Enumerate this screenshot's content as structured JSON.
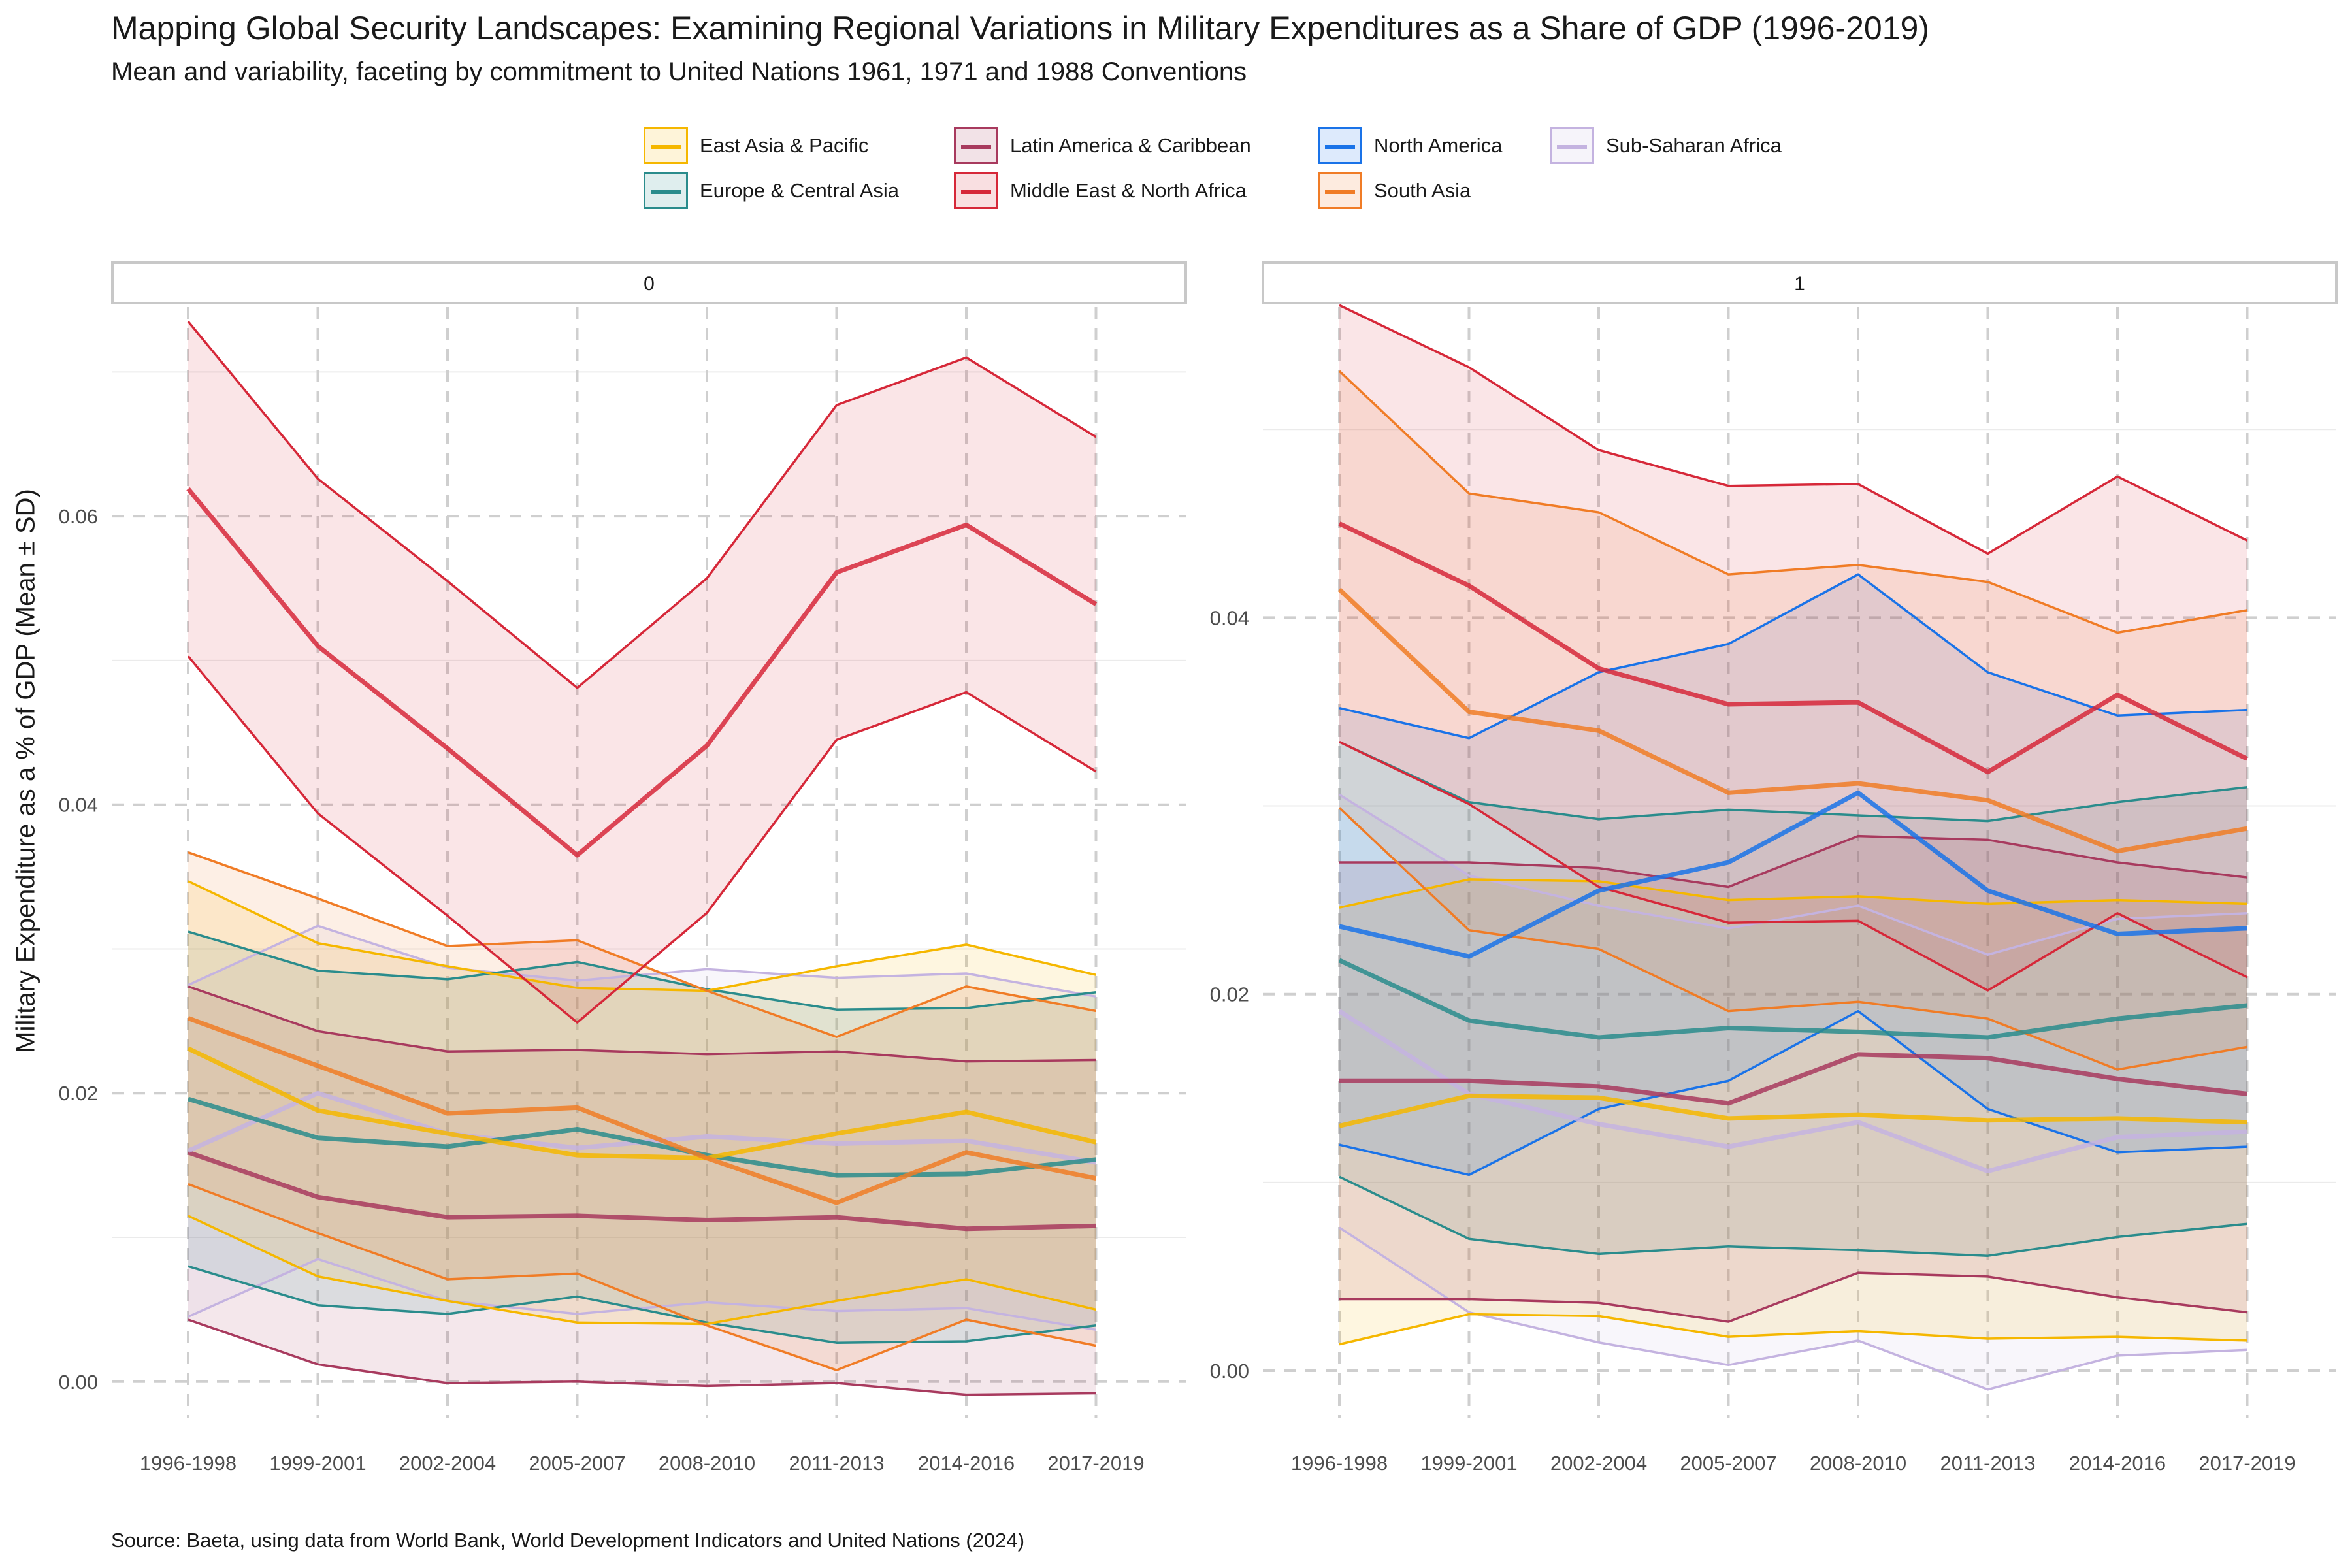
{
  "chart_data": {
    "type": "line",
    "title": "Mapping Global Security Landscapes: Examining Regional Variations in Military Expenditures as a Share of GDP (1996-2019)",
    "subtitle": "Mean and variability, faceting by commitment to United Nations 1961, 1971 and 1988 Conventions",
    "ylabel": "Military Expenditure as a % of GDP (Mean ± SD)",
    "xlabel": "",
    "caption": "Source: Baeta, using data from World Bank, World Development Indicators and United Nations (2024)",
    "categories": [
      "1996-1998",
      "1999-2001",
      "2002-2004",
      "2005-2007",
      "2008-2010",
      "2011-2013",
      "2014-2016",
      "2017-2019"
    ],
    "legend_position": "top",
    "grid": true,
    "legend": [
      {
        "name": "East Asia & Pacific",
        "color": "#F5B700"
      },
      {
        "name": "Europe & Central Asia",
        "color": "#2A8C8C"
      },
      {
        "name": "Latin America & Caribbean",
        "color": "#A83A5E"
      },
      {
        "name": "Middle East & North Africa",
        "color": "#D62839"
      },
      {
        "name": "North America",
        "color": "#1A73E8"
      },
      {
        "name": "South Asia",
        "color": "#F07C26"
      },
      {
        "name": "Sub-Saharan Africa",
        "color": "#C4B3E0"
      }
    ],
    "panels": [
      {
        "label": "0",
        "ylim": [
          -0.0025,
          0.0745
        ],
        "y_ticks": [
          0.0,
          0.02,
          0.04,
          0.06
        ],
        "y_tick_labels": [
          "0.00",
          "0.02",
          "0.04",
          "0.06"
        ],
        "series": [
          {
            "name": "Latin America & Caribbean",
            "mean": [
              0.0159,
              0.0128,
              0.0114,
              0.0115,
              0.0112,
              0.0114,
              0.0106,
              0.0108
            ],
            "upper": [
              0.0274,
              0.0243,
              0.0229,
              0.023,
              0.0227,
              0.0229,
              0.0222,
              0.0223
            ],
            "lower": [
              0.0043,
              0.0012,
              -0.0001,
              0.0,
              -0.0003,
              -0.0001,
              -0.0009,
              -0.0008
            ]
          },
          {
            "name": "Sub-Saharan Africa",
            "mean": [
              0.016,
              0.02,
              0.0172,
              0.0162,
              0.017,
              0.0165,
              0.0167,
              0.0152
            ],
            "upper": [
              0.0275,
              0.0316,
              0.0287,
              0.0278,
              0.0286,
              0.028,
              0.0283,
              0.0267
            ],
            "lower": [
              0.0045,
              0.0085,
              0.0056,
              0.0047,
              0.0055,
              0.0049,
              0.0051,
              0.0036
            ]
          },
          {
            "name": "Europe & Central Asia",
            "mean": [
              0.0196,
              0.0169,
              0.0163,
              0.0175,
              0.0157,
              0.0143,
              0.0144,
              0.0154
            ],
            "upper": [
              0.0312,
              0.0285,
              0.0279,
              0.0291,
              0.0272,
              0.0258,
              0.0259,
              0.027
            ],
            "lower": [
              0.008,
              0.0053,
              0.0047,
              0.0059,
              0.0041,
              0.0027,
              0.0028,
              0.0039
            ]
          },
          {
            "name": "East Asia & Pacific",
            "mean": [
              0.0231,
              0.0188,
              0.0172,
              0.0157,
              0.0155,
              0.0172,
              0.0187,
              0.0166
            ],
            "upper": [
              0.0347,
              0.0304,
              0.0288,
              0.0273,
              0.0271,
              0.0288,
              0.0303,
              0.0282
            ],
            "lower": [
              0.0115,
              0.0073,
              0.0056,
              0.0041,
              0.004,
              0.0056,
              0.0071,
              0.005
            ]
          },
          {
            "name": "South Asia",
            "mean": [
              0.0252,
              0.0219,
              0.0186,
              0.019,
              0.0155,
              0.0124,
              0.0159,
              0.0141
            ],
            "upper": [
              0.0367,
              0.0335,
              0.0302,
              0.0306,
              0.0271,
              0.0239,
              0.0274,
              0.0257
            ],
            "lower": [
              0.0137,
              0.0103,
              0.0071,
              0.0075,
              0.0039,
              0.0008,
              0.0043,
              0.0025
            ]
          },
          {
            "name": "Middle East & North Africa",
            "mean": [
              0.0619,
              0.051,
              0.0439,
              0.0365,
              0.0441,
              0.0561,
              0.0594,
              0.0539
            ],
            "upper": [
              0.0735,
              0.0626,
              0.0555,
              0.0481,
              0.0557,
              0.0677,
              0.071,
              0.0655
            ],
            "lower": [
              0.0503,
              0.0394,
              0.0323,
              0.0249,
              0.0325,
              0.0445,
              0.0478,
              0.0423
            ]
          }
        ]
      },
      {
        "label": "1",
        "ylim": [
          -0.0025,
          0.0565
        ],
        "y_ticks": [
          0.0,
          0.02,
          0.04
        ],
        "y_tick_labels": [
          "0.00",
          "0.02",
          "0.04"
        ],
        "series": [
          {
            "name": "Sub-Saharan Africa",
            "mean": [
              0.0191,
              0.0147,
              0.0131,
              0.0119,
              0.0132,
              0.0106,
              0.0124,
              0.0127
            ],
            "upper": [
              0.0306,
              0.0263,
              0.0247,
              0.0235,
              0.0247,
              0.0221,
              0.024,
              0.0243
            ],
            "lower": [
              0.0076,
              0.0031,
              0.0015,
              0.0003,
              0.0016,
              -0.001,
              0.0008,
              0.0011
            ]
          },
          {
            "name": "Europe & Central Asia",
            "mean": [
              0.0218,
              0.0186,
              0.0177,
              0.0182,
              0.018,
              0.0177,
              0.0187,
              0.0194
            ],
            "upper": [
              0.0334,
              0.0302,
              0.0293,
              0.0298,
              0.0295,
              0.0292,
              0.0302,
              0.031
            ],
            "lower": [
              0.0103,
              0.007,
              0.0062,
              0.0066,
              0.0064,
              0.0061,
              0.0071,
              0.0078
            ]
          },
          {
            "name": "East Asia & Pacific",
            "mean": [
              0.013,
              0.0146,
              0.0145,
              0.0134,
              0.0136,
              0.0133,
              0.0134,
              0.0132
            ],
            "upper": [
              0.0246,
              0.0261,
              0.026,
              0.025,
              0.0252,
              0.0248,
              0.025,
              0.0248
            ],
            "lower": [
              0.0014,
              0.003,
              0.0029,
              0.0018,
              0.0021,
              0.0017,
              0.0018,
              0.0016
            ]
          },
          {
            "name": "Latin America & Caribbean",
            "mean": [
              0.0154,
              0.0154,
              0.0151,
              0.0142,
              0.0168,
              0.0166,
              0.0155,
              0.0147
            ],
            "upper": [
              0.027,
              0.027,
              0.0267,
              0.0257,
              0.0284,
              0.0282,
              0.027,
              0.0262
            ],
            "lower": [
              0.0038,
              0.0038,
              0.0036,
              0.0026,
              0.0052,
              0.005,
              0.0039,
              0.0031
            ]
          },
          {
            "name": "North America",
            "mean": [
              0.0236,
              0.022,
              0.0255,
              0.027,
              0.0307,
              0.0255,
              0.0232,
              0.0235
            ],
            "upper": [
              0.0352,
              0.0336,
              0.0371,
              0.0386,
              0.0423,
              0.0371,
              0.0348,
              0.0351
            ],
            "lower": [
              0.012,
              0.0104,
              0.0139,
              0.0154,
              0.0191,
              0.0139,
              0.0116,
              0.0119
            ]
          },
          {
            "name": "South Asia",
            "mean": [
              0.0415,
              0.035,
              0.034,
              0.0307,
              0.0312,
              0.0303,
              0.0276,
              0.0288
            ],
            "upper": [
              0.0531,
              0.0466,
              0.0456,
              0.0423,
              0.0428,
              0.0419,
              0.0392,
              0.0404
            ],
            "lower": [
              0.0299,
              0.0234,
              0.0224,
              0.0191,
              0.0196,
              0.0187,
              0.016,
              0.0172
            ]
          },
          {
            "name": "Middle East & North Africa",
            "mean": [
              0.045,
              0.0417,
              0.0373,
              0.0354,
              0.0355,
              0.0318,
              0.0359,
              0.0325
            ],
            "upper": [
              0.0566,
              0.0533,
              0.0489,
              0.047,
              0.0471,
              0.0434,
              0.0475,
              0.0441
            ],
            "lower": [
              0.0334,
              0.0301,
              0.0257,
              0.0238,
              0.0239,
              0.0202,
              0.0243,
              0.0209
            ]
          }
        ]
      }
    ]
  }
}
